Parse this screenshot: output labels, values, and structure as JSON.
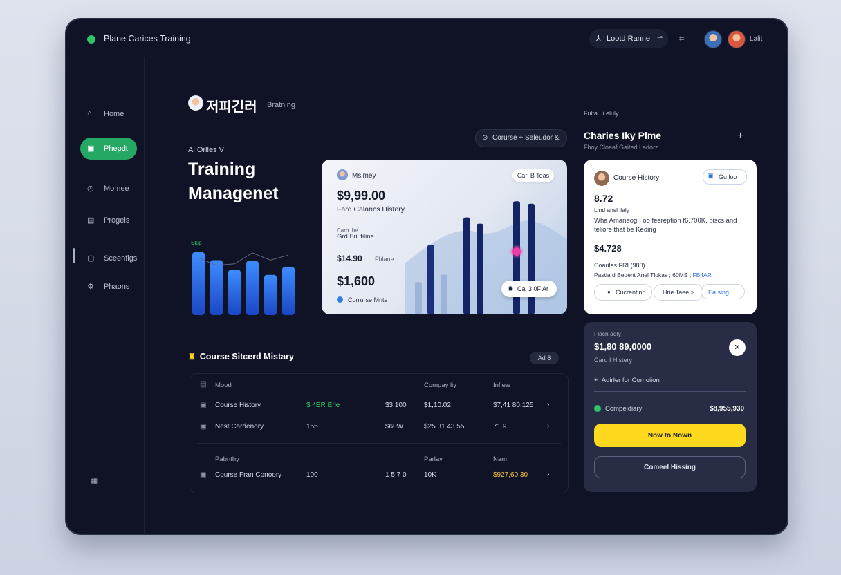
{
  "topbar": {
    "brand": "Plane Carices Training",
    "location_pill": "Lootd Ranne",
    "user_label": "Lalit"
  },
  "sidebar": {
    "items": [
      {
        "label": "Home",
        "icon": "home-icon",
        "glyph": "⌂"
      },
      {
        "label": "Phepdt",
        "icon": "lesson-icon",
        "glyph": "▣"
      },
      {
        "label": "Momee",
        "icon": "clock-icon",
        "glyph": "◷"
      },
      {
        "label": "Progeis",
        "icon": "folder-icon",
        "glyph": "▤"
      },
      {
        "label": "Sceenfigs",
        "icon": "settings-icon",
        "glyph": "▢"
      },
      {
        "label": "Phaons",
        "icon": "gear-icon",
        "glyph": "⚙"
      }
    ]
  },
  "main": {
    "korean_title": "저피긴러",
    "korean_subtitle": "Bratning",
    "filter_label": "Al Orlles V",
    "headline": "Training Managenet",
    "select_pill": "Corurse + Seleudor &"
  },
  "dark_chart": {
    "type": "bar",
    "label": "Skip",
    "values": [
      86,
      75,
      62,
      74,
      55,
      66
    ],
    "ylim": [
      0,
      100
    ],
    "line": [
      78,
      68,
      70,
      85,
      75,
      82
    ]
  },
  "light_card": {
    "header": "Mslmey",
    "badge": "Carl B Teas",
    "amount": "$9,99.00",
    "subtitle": "Fard Calancs History",
    "small_label": "Carb the",
    "small_text": "Grd Fril filine",
    "mid_value": "$14.90",
    "mid_suffix": "Fhlane",
    "amount2": "$1,600",
    "footer": "Corrurse Mnts",
    "data_pill": "Cal 3 0F Ar",
    "chart": {
      "type": "bar",
      "values": [
        26,
        56,
        32,
        78,
        73,
        91,
        89
      ],
      "ylim": [
        0,
        100
      ],
      "highlight_index": 5
    }
  },
  "right_header": {
    "eyebrow": "Fulta ui eluly",
    "name": "Charies Iky Plme",
    "subtitle": "Fboy Cloeaf Gaited Ladorz"
  },
  "white_card": {
    "title": "Course History",
    "button": "Gu loo",
    "value1": "8.72",
    "label1": "Lind ansl llaly",
    "desc": "Wha Amaneog ; oo feereption f6,700K, biscs and teliore that be Keding",
    "value2": "$4.728",
    "label2": "Coariles FRI (980)",
    "label3_prefix": "Pastia d Bedent Anel Tlokas ; 60MS ; ",
    "label3_highlight": "FB4AR",
    "btn1": "Cucrentinn",
    "btn2": "Hrie Taee >",
    "btn3": "Ea sing"
  },
  "dark_card": {
    "eyebrow": "Flacn adly",
    "value": "$1,80 89,0000",
    "sub": "Card I Histery",
    "add_label": "Adirler for Comoiion",
    "row_label": "Compeidiary",
    "row_value": "$8,955,930",
    "primary_button": "Now to Nown",
    "secondary_button": "Comeel Hissing"
  },
  "section": {
    "title": "Course Sitcerd Mistary",
    "pill": "Ad 8"
  },
  "table": {
    "header1": [
      "Mood",
      "Compay liy",
      "Inflew"
    ],
    "rows1": [
      {
        "name": "Course History",
        "c2": "$ 4ER Erle",
        "c3": "$3,100",
        "c4": "$1,10.02",
        "c5": "$7,41 80.125"
      },
      {
        "name": "Nest Cardenory",
        "c2": "155",
        "c3": "$60W",
        "c4": "$25 31 43 55",
        "c5": "71.9"
      }
    ],
    "header2": [
      "Pabnthy",
      "Parlay",
      "Nam"
    ],
    "rows2": [
      {
        "name": "Course Fran Conoory",
        "c2": "100",
        "c3": "1 5 7 0",
        "c4": "10K",
        "c5": "$927,60 30"
      }
    ]
  }
}
